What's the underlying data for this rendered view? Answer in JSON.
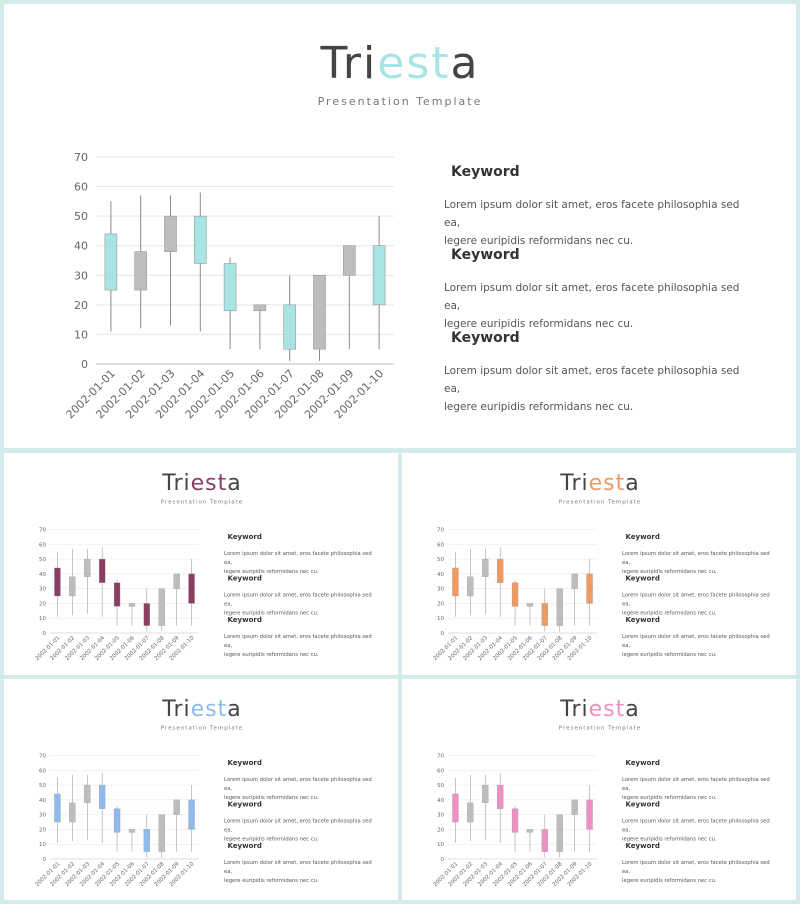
{
  "title_parts": [
    "Tri",
    "est",
    "a"
  ],
  "subtitle": "Presentation Template",
  "keywords": [
    {
      "label": "Keyword",
      "text_line1": "Lorem ipsum dolor sit amet, eros facete philosophia sed ea,",
      "text_line2": "legere euripidis reformidans nec cu."
    },
    {
      "label": "Keyword",
      "text_line1": "Lorem ipsum dolor sit amet, eros facete philosophia sed ea,",
      "text_line2": "legere euripidis reformidans nec cu."
    },
    {
      "label": "Keyword",
      "text_line1": "Lorem ipsum dolor sit amet, eros facete philosophia sed ea,",
      "text_line2": "legere euripidis reformidans nec cu."
    }
  ],
  "themes": {
    "main": "#a8e4e4",
    "t1": "#8c3d65",
    "t2": "#f09a62",
    "t3": "#8dbcec",
    "t4": "#ee90c3"
  },
  "neutral_color": "#bdbdbd",
  "chart_data": {
    "type": "candlestick",
    "categories": [
      "2002-01-01",
      "2002-01-02",
      "2002-01-03",
      "2002-01-04",
      "2002-01-05",
      "2002-01-06",
      "2002-01-07",
      "2002-01-08",
      "2002-01-09",
      "2002-01-10"
    ],
    "series": [
      {
        "open": 25,
        "close": 44,
        "low": 11,
        "high": 55
      },
      {
        "open": 38,
        "close": 25,
        "low": 12,
        "high": 57
      },
      {
        "open": 50,
        "close": 38,
        "low": 13,
        "high": 57
      },
      {
        "open": 34,
        "close": 50,
        "low": 11,
        "high": 58
      },
      {
        "open": 18,
        "close": 34,
        "low": 5,
        "high": 36
      },
      {
        "open": 20,
        "close": 18,
        "low": 5,
        "high": 20
      },
      {
        "open": 5,
        "close": 20,
        "low": 1,
        "high": 30
      },
      {
        "open": 30,
        "close": 5,
        "low": 1,
        "high": 30
      },
      {
        "open": 40,
        "close": 30,
        "low": 5,
        "high": 40
      },
      {
        "open": 20,
        "close": 40,
        "low": 5,
        "high": 50
      }
    ],
    "ylim": [
      0,
      70
    ],
    "yticks": [
      0,
      10,
      20,
      30,
      40,
      50,
      60,
      70
    ],
    "grid": true,
    "legend": "none"
  }
}
